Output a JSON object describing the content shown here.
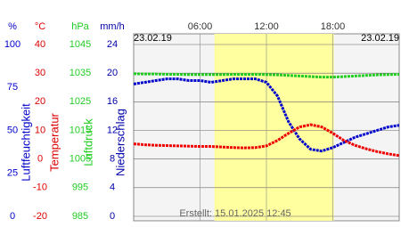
{
  "chart_data": {
    "type": "line",
    "date_left": "23.02.19",
    "date_right": "23.02.19",
    "footer": "Erstellt: 15.01.2025 12:45",
    "xlim": [
      0,
      24
    ],
    "xticks": [
      {
        "value": 6,
        "label": "06:00"
      },
      {
        "value": 12,
        "label": "12:00"
      },
      {
        "value": 18,
        "label": "18:00"
      }
    ],
    "daylight": [
      7.3,
      18.1
    ],
    "axes": [
      {
        "unit": "%",
        "title": "Luftfeuchtigkeit",
        "color": "#0000cc",
        "ylim": [
          0,
          100
        ],
        "yticks": [
          0,
          25,
          50,
          75,
          100
        ]
      },
      {
        "unit": "°C",
        "title": "Temperatur",
        "color": "#dd0000",
        "ylim": [
          -20,
          40
        ],
        "yticks": [
          -20,
          -10,
          0,
          10,
          20,
          30,
          40
        ]
      },
      {
        "unit": "hPa",
        "title": "Luftdruck",
        "color": "#22cc22",
        "ylim": [
          985,
          1045
        ],
        "yticks": [
          985,
          995,
          1005,
          1015,
          1025,
          1035,
          1045
        ]
      },
      {
        "unit": "mm/h",
        "title": "Niederschlag",
        "color": "#0000aa",
        "ylim": [
          0,
          24
        ],
        "yticks": [
          0,
          4,
          8,
          12,
          16,
          20,
          24
        ]
      }
    ],
    "x": [
      0,
      1,
      2,
      3,
      4,
      5,
      6,
      7,
      8,
      9,
      10,
      11,
      12,
      13,
      14,
      15,
      16,
      17,
      18,
      19,
      20,
      21,
      22,
      23,
      24
    ],
    "series": [
      {
        "axis": 0,
        "color": "#0000cc",
        "values": [
          77,
          78,
          79,
          80,
          80,
          79,
          79,
          78,
          79,
          80,
          80,
          80,
          78,
          70,
          55,
          45,
          39,
          38,
          40,
          43,
          46,
          48,
          50,
          52,
          53
        ]
      },
      {
        "axis": 1,
        "color": "#ee0000",
        "values": [
          5.3,
          5,
          4.8,
          4.7,
          4.6,
          4.5,
          4.4,
          4.4,
          4.2,
          4,
          3.9,
          4,
          4.6,
          6.5,
          9,
          11.2,
          12,
          11.2,
          9,
          6.5,
          4.8,
          3.6,
          2.6,
          1.8,
          1.2
        ]
      },
      {
        "axis": 2,
        "color": "#22cc22",
        "values": [
          1034.8,
          1034.7,
          1034.7,
          1034.6,
          1034.6,
          1034.5,
          1034.5,
          1034.5,
          1034.5,
          1034.6,
          1034.6,
          1034.6,
          1034.5,
          1034.4,
          1034.2,
          1034,
          1033.8,
          1033.6,
          1033.6,
          1033.8,
          1034,
          1034.2,
          1034.4,
          1034.5,
          1034.6
        ]
      }
    ]
  }
}
